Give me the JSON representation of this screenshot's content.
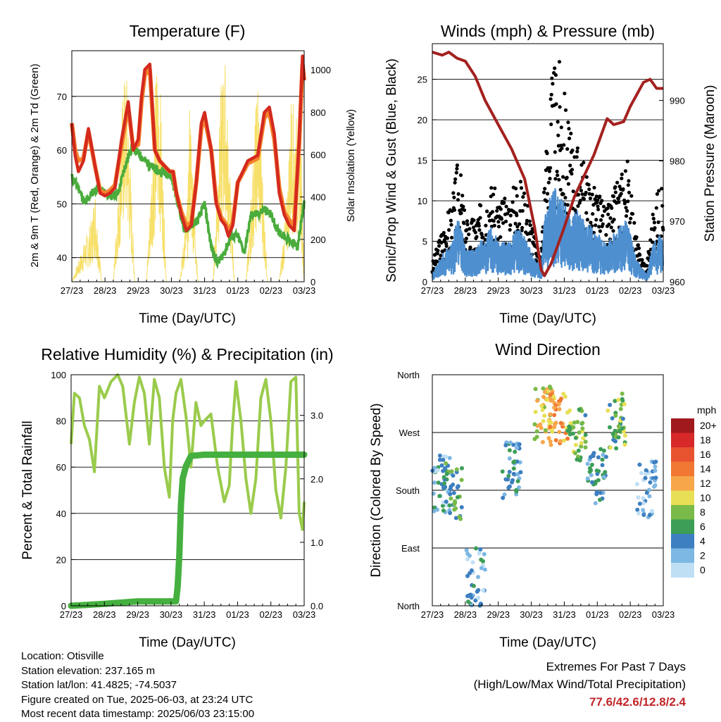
{
  "chart_data": [
    {
      "type": "line",
      "title": "Temperature (F)",
      "xlabel": "Time (Day/UTC)",
      "ylabel": "2m & 9m T (Red, Orange) & 2m Td (Green)",
      "ylabel_right": "Solar Insolation (Yellow)",
      "x_ticks": [
        "27/23",
        "28/23",
        "29/23",
        "30/23",
        "31/23",
        "01/23",
        "02/23",
        "03/23"
      ],
      "ylim": [
        35.5,
        78.5
      ],
      "y_ticks": [
        40,
        50,
        60,
        70
      ],
      "ylim_right": [
        0,
        1090
      ],
      "y_ticks_right": [
        0,
        200,
        400,
        600,
        800,
        1000
      ],
      "grid": "horizontal",
      "colors": {
        "t2m": "#d42a1e",
        "t9m": "#f5822c",
        "td2m": "#4aac3c",
        "solar": "#f7e06a"
      },
      "series": [
        {
          "key": "t2m",
          "x_day": [
            0,
            0.1,
            0.2,
            0.35,
            0.5,
            0.7,
            0.85,
            1.0,
            1.15,
            1.3,
            1.5,
            1.7,
            1.85,
            2.0,
            2.1,
            2.2,
            2.35,
            2.5,
            2.65,
            2.8,
            2.95,
            3.05,
            3.15,
            3.3,
            3.45,
            3.6,
            3.75,
            3.9,
            4.0,
            4.2,
            4.35,
            4.5,
            4.62,
            4.72,
            4.85,
            5.0,
            5.3,
            5.6,
            5.8,
            5.95,
            6.1,
            6.25,
            6.4,
            6.55,
            6.7,
            6.85,
            6.95,
            7.0
          ],
          "y": [
            65,
            59,
            56,
            58,
            64,
            57,
            52,
            51.5,
            52,
            53,
            62,
            69,
            60,
            62,
            70,
            75,
            76,
            60,
            58,
            57,
            56,
            56,
            52,
            48,
            45,
            46,
            54,
            65,
            67,
            60,
            50,
            47,
            46,
            44,
            46,
            54,
            58,
            59,
            67,
            68,
            63,
            52,
            48,
            46,
            45,
            62,
            77.5,
            73
          ]
        },
        {
          "key": "t9m",
          "x_day": [
            0,
            0.1,
            0.2,
            0.35,
            0.5,
            0.7,
            0.85,
            1.0,
            1.15,
            1.3,
            1.5,
            1.7,
            1.85,
            2.0,
            2.1,
            2.2,
            2.35,
            2.5,
            2.65,
            2.8,
            2.95,
            3.05,
            3.15,
            3.3,
            3.45,
            3.6,
            3.75,
            3.9,
            4.0,
            4.2,
            4.35,
            4.5,
            4.62,
            4.72,
            4.85,
            5.0,
            5.3,
            5.6,
            5.8,
            5.95,
            6.1,
            6.25,
            6.4,
            6.55,
            6.7,
            6.85,
            6.95,
            7.0
          ],
          "y": [
            65,
            60,
            58,
            58.5,
            63.5,
            57,
            52.5,
            52,
            52.5,
            53.5,
            61,
            68,
            60.5,
            61,
            69,
            74,
            75,
            60,
            58,
            57,
            56,
            56,
            52,
            48.5,
            46,
            46.5,
            54,
            64,
            66,
            60,
            50.5,
            47.5,
            46.5,
            45,
            46.5,
            54,
            57.5,
            58.5,
            66,
            67,
            62,
            53,
            48.5,
            47,
            46,
            61,
            76,
            73
          ]
        },
        {
          "key": "td2m",
          "x_day": [
            0,
            0.2,
            0.4,
            0.6,
            0.8,
            1.0,
            1.2,
            1.4,
            1.6,
            1.8,
            2.0,
            2.2,
            2.4,
            2.6,
            2.8,
            3.0,
            3.2,
            3.4,
            3.6,
            3.8,
            4.0,
            4.2,
            4.4,
            4.6,
            4.8,
            5.0,
            5.2,
            5.4,
            5.6,
            5.8,
            6.0,
            6.2,
            6.4,
            6.6,
            6.8,
            7.0
          ],
          "y": [
            55,
            53,
            50,
            52,
            53,
            52,
            51.5,
            52,
            57,
            60.5,
            59.5,
            58,
            57,
            56,
            56,
            55,
            50,
            45,
            46,
            47,
            50,
            42,
            39,
            41,
            44,
            44,
            41,
            48,
            48,
            49,
            48,
            45,
            44,
            43,
            42,
            50
          ]
        },
        {
          "key": "solar",
          "x_day": [
            0,
            0.6,
            0.7,
            0.9,
            1.25,
            1.55,
            1.65,
            1.9,
            2.25,
            2.55,
            2.65,
            2.85,
            3.25,
            3.5,
            3.55,
            3.8,
            4.25,
            4.5,
            4.62,
            4.9,
            5.25,
            5.5,
            5.6,
            5.9,
            6.25,
            6.5,
            6.6,
            6.9,
            7.0
          ],
          "y": [
            0,
            300,
            450,
            0,
            0,
            950,
            1000,
            0,
            0,
            1050,
            1000,
            0,
            0,
            430,
            900,
            0,
            0,
            960,
            1050,
            0,
            0,
            700,
            1000,
            0,
            0,
            450,
            900,
            700,
            0
          ]
        }
      ]
    },
    {
      "type": "scatter",
      "title": "Winds (mph) & Pressure (mb)",
      "xlabel": "Time (Day/UTC)",
      "ylabel": "Sonic/Prop Wind & Gust (Blue, Black)",
      "ylabel_right": "Station Pressure (Maroon)",
      "x_ticks": [
        "27/23",
        "28/23",
        "29/23",
        "30/23",
        "31/23",
        "01/23",
        "02/23",
        "03/23"
      ],
      "ylim": [
        0,
        29.4
      ],
      "y_ticks": [
        0,
        5,
        10,
        15,
        20,
        25
      ],
      "ylim_right": [
        960,
        999.4
      ],
      "y_ticks_right": [
        960,
        970,
        980,
        990
      ],
      "grid": "horizontal",
      "colors": {
        "gust": "#000000",
        "wind": "#4e8fd0",
        "pressure": "#a3211f"
      },
      "series": [
        {
          "key": "wind_envelope",
          "x_day": [
            0,
            0.3,
            0.6,
            0.8,
            1.0,
            1.3,
            1.6,
            1.8,
            2.0,
            2.3,
            2.6,
            2.9,
            3.1,
            3.3,
            3.4,
            3.6,
            3.8,
            4.0,
            4.2,
            4.4,
            4.6,
            4.8,
            5.0,
            5.3,
            5.5,
            5.7,
            5.9,
            6.1,
            6.3,
            6.5,
            6.7,
            6.9,
            7.0
          ],
          "y": [
            1,
            3.5,
            5,
            9,
            4,
            4,
            6,
            7,
            5,
            5,
            7,
            5,
            3,
            2,
            8,
            11,
            12,
            10,
            8,
            9,
            8,
            7,
            6,
            5,
            6,
            7,
            8,
            4,
            2,
            1,
            5,
            6,
            5
          ]
        },
        {
          "key": "gust_envelope",
          "x_day": [
            0,
            0.3,
            0.6,
            0.8,
            1.0,
            1.3,
            1.6,
            1.8,
            2.0,
            2.3,
            2.6,
            2.9,
            3.1,
            3.3,
            3.4,
            3.6,
            3.8,
            4.0,
            4.2,
            4.4,
            4.6,
            4.8,
            5.0,
            5.3,
            5.5,
            5.7,
            5.9,
            6.1,
            6.3,
            6.5,
            6.7,
            6.9,
            7.0
          ],
          "y": [
            2,
            6,
            9,
            14,
            7,
            7,
            10,
            11,
            9,
            9,
            12,
            9,
            5,
            3,
            13,
            22,
            25,
            21,
            16,
            15,
            13,
            11,
            10,
            8,
            10,
            12,
            14,
            7,
            3,
            2,
            8,
            11,
            9
          ]
        },
        {
          "key": "pressure",
          "x_day": [
            0,
            0.3,
            0.5,
            0.75,
            1.0,
            1.3,
            1.6,
            2.0,
            2.4,
            2.8,
            3.1,
            3.3,
            3.4,
            3.6,
            3.8,
            4.0,
            4.3,
            4.6,
            4.9,
            5.1,
            5.3,
            5.5,
            5.8,
            6.0,
            6.2,
            6.4,
            6.6,
            6.8,
            6.9,
            7.0
          ],
          "y": [
            998,
            997.5,
            998,
            997,
            996.5,
            994,
            990,
            986,
            982,
            977,
            969,
            962,
            961,
            963,
            966,
            969,
            974,
            977.5,
            981,
            984,
            987,
            986,
            986.5,
            989,
            991,
            993,
            993.5,
            992,
            992,
            992
          ]
        }
      ]
    },
    {
      "type": "line",
      "title": "Relative Humidity (%) & Precipitation (in)",
      "xlabel": "Time (Day/UTC)",
      "ylabel": "Percent & Total Rainfall",
      "x_ticks": [
        "27/23",
        "28/23",
        "29/23",
        "30/23",
        "31/23",
        "01/23",
        "02/23",
        "03/23"
      ],
      "ylim": [
        0,
        100
      ],
      "y_ticks": [
        0,
        20,
        40,
        60,
        80,
        100
      ],
      "ylim_right": [
        0,
        3.64
      ],
      "y_ticks_right": [
        "0.0",
        "1.0",
        "2.0",
        "3.0"
      ],
      "grid": "horizontal",
      "colors": {
        "rh": "#9acb4c",
        "precip": "#45b03f"
      },
      "series": [
        {
          "key": "rh",
          "x_day": [
            0,
            0.1,
            0.25,
            0.4,
            0.55,
            0.7,
            0.85,
            1.0,
            1.2,
            1.4,
            1.55,
            1.75,
            1.9,
            2.05,
            2.2,
            2.35,
            2.5,
            2.65,
            2.8,
            2.95,
            3.05,
            3.15,
            3.3,
            3.45,
            3.6,
            3.75,
            3.9,
            4.0,
            4.2,
            4.4,
            4.6,
            4.75,
            4.85,
            4.95,
            5.1,
            5.25,
            5.4,
            5.55,
            5.7,
            5.85,
            6.0,
            6.15,
            6.3,
            6.45,
            6.6,
            6.75,
            6.85,
            6.95,
            7.0
          ],
          "y": [
            70,
            92,
            90,
            78,
            72,
            58,
            95,
            90,
            97,
            100,
            95,
            70,
            88,
            99,
            92,
            70,
            98,
            90,
            60,
            47,
            80,
            92,
            98,
            82,
            60,
            88,
            78,
            80,
            83,
            60,
            45,
            52,
            78,
            97,
            80,
            55,
            40,
            55,
            90,
            98,
            80,
            50,
            38,
            60,
            97,
            99,
            40,
            33,
            45
          ]
        },
        {
          "key": "precip_in",
          "x_day": [
            0,
            1.0,
            2.0,
            3.0,
            3.15,
            3.2,
            3.25,
            3.3,
            3.35,
            3.45,
            3.6,
            4.0,
            5.0,
            6.0,
            7.0
          ],
          "y": [
            0,
            0.03,
            0.07,
            0.07,
            0.07,
            0.3,
            0.8,
            1.6,
            2.0,
            2.2,
            2.36,
            2.38,
            2.38,
            2.38,
            2.38
          ]
        }
      ]
    },
    {
      "type": "scatter",
      "title": "Wind Direction",
      "xlabel": "Time (Day/UTC)",
      "ylabel": "Direction (Colored By Speed)",
      "x_ticks": [
        "27/23",
        "28/23",
        "29/23",
        "30/23",
        "31/23",
        "01/23",
        "02/23",
        "03/23"
      ],
      "y_categories": [
        "North",
        "East",
        "South",
        "West",
        "North"
      ],
      "ylim_deg": [
        0,
        360
      ],
      "grid": "horizontal",
      "colorbar": {
        "unit": "mph",
        "labels": [
          "20+",
          "18",
          "16",
          "14",
          "12",
          "10",
          "8",
          "6",
          "4",
          "2",
          "0"
        ],
        "colors": [
          "#a0191c",
          "#d7282a",
          "#e8532f",
          "#f07832",
          "#f7a64a",
          "#e9df56",
          "#79ba48",
          "#3c9e57",
          "#3d7fc0",
          "#7db7e4",
          "#bfdff5"
        ]
      },
      "clusters": [
        {
          "x_day": 0.3,
          "dir": 190,
          "speed": 3
        },
        {
          "x_day": 0.6,
          "dir": 180,
          "speed": 6
        },
        {
          "x_day": 1.3,
          "dir": 45,
          "speed": 3
        },
        {
          "x_day": 2.4,
          "dir": 210,
          "speed": 4
        },
        {
          "x_day": 3.4,
          "dir": 300,
          "speed": 10
        },
        {
          "x_day": 3.8,
          "dir": 290,
          "speed": 12
        },
        {
          "x_day": 4.4,
          "dir": 270,
          "speed": 7
        },
        {
          "x_day": 5.0,
          "dir": 200,
          "speed": 4
        },
        {
          "x_day": 5.6,
          "dir": 290,
          "speed": 7
        },
        {
          "x_day": 6.5,
          "dir": 180,
          "speed": 2
        }
      ]
    }
  ],
  "footer": {
    "location": "Location: Otisville",
    "elevation": "Station elevation: 237.165 m",
    "latlon": "Station lat/lon: 41.4825; -74.5037",
    "created": "Figure created on Tue, 2025-06-03, at 23:24 UTC",
    "recent": "Most recent data timestamp: 2025/06/03 23:15:00"
  },
  "extremes": {
    "title": "Extremes For Past 7 Days",
    "subtitle": "(High/Low/Max Wind/Total Precipitation)",
    "values": "77.6/42.6/12.8/2.4"
  }
}
